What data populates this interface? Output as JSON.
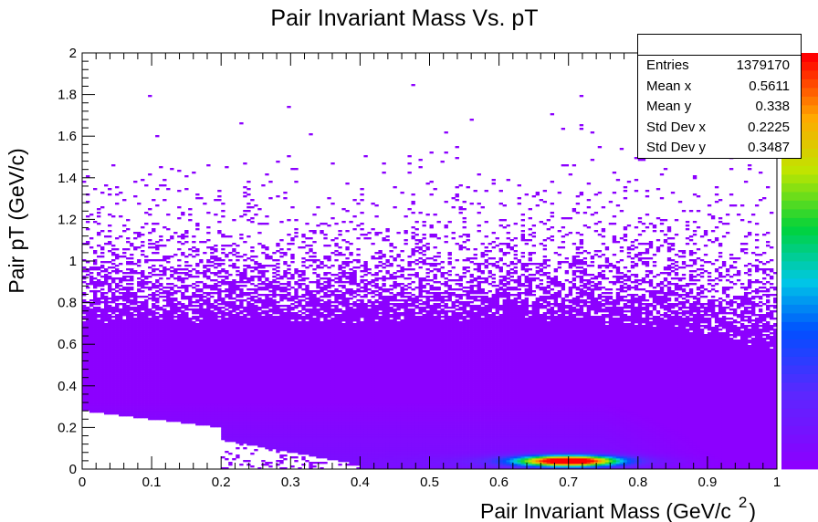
{
  "chart_data": {
    "type": "heatmap",
    "title": "Pair Invariant Mass Vs. pT",
    "xlabel": "Pair Invariant Mass (GeV/c",
    "xlabel_sup": "2",
    "xlabel_close": ")",
    "ylabel": "Pair pT (GeV/c)",
    "xlim": [
      0,
      1
    ],
    "ylim": [
      0,
      2
    ],
    "x_ticks": [
      "0",
      "0.1",
      "0.2",
      "0.3",
      "0.4",
      "0.5",
      "0.6",
      "0.7",
      "0.8",
      "0.9",
      "1"
    ],
    "y_ticks": [
      "0",
      "0.2",
      "0.4",
      "0.6",
      "0.8",
      "1",
      "1.2",
      "1.4",
      "1.6",
      "1.8",
      "2"
    ],
    "colormap": "rainbow (purple low → red high)",
    "peak": {
      "x": 0.7,
      "y": 0.04
    },
    "stats": [
      {
        "label": "Entries",
        "value": "1379170"
      },
      {
        "label": "Mean x",
        "value": "0.5611"
      },
      {
        "label": "Mean y",
        "value": "0.338"
      },
      {
        "label": "Std Dev x",
        "value": "0.2225"
      },
      {
        "label": "Std Dev y",
        "value": "0.3487"
      }
    ],
    "colors": {
      "low": "#8a00ff",
      "mid": "#00d000",
      "high": "#ff0000"
    }
  }
}
